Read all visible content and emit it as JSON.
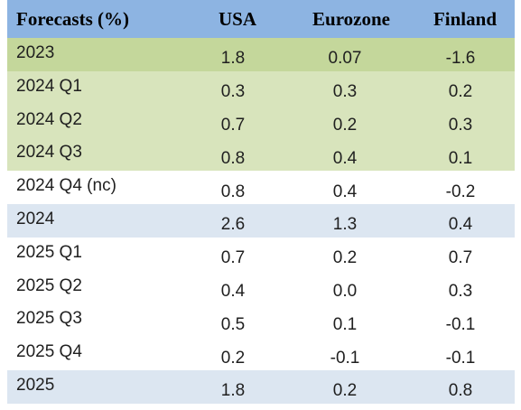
{
  "chart_data": {
    "type": "table",
    "header": {
      "label": "Forecasts (%)",
      "columns": [
        "USA",
        "Eurozone",
        "Finland"
      ]
    },
    "rows": [
      {
        "label": "2023",
        "values": [
          "1.8",
          "0.07",
          "-1.6"
        ],
        "style": "year-green"
      },
      {
        "label": "2024 Q1",
        "values": [
          "0.3",
          "0.3",
          "0.2"
        ],
        "style": "quarter-green"
      },
      {
        "label": "2024 Q2",
        "values": [
          "0.7",
          "0.2",
          "0.3"
        ],
        "style": "quarter-green"
      },
      {
        "label": "2024 Q3",
        "values": [
          "0.8",
          "0.4",
          "0.1"
        ],
        "style": "quarter-green"
      },
      {
        "label": "2024 Q4 (nc)",
        "values": [
          "0.8",
          "0.4",
          "-0.2"
        ],
        "style": "white"
      },
      {
        "label": "2024",
        "values": [
          "2.6",
          "1.3",
          "0.4"
        ],
        "style": "year-blue"
      },
      {
        "label": "2025 Q1",
        "values": [
          "0.7",
          "0.2",
          "0.7"
        ],
        "style": "white"
      },
      {
        "label": "2025 Q2",
        "values": [
          "0.4",
          "0.0",
          "0.3"
        ],
        "style": "white"
      },
      {
        "label": "2025 Q3",
        "values": [
          "0.5",
          "0.1",
          "-0.1"
        ],
        "style": "white"
      },
      {
        "label": "2025 Q4",
        "values": [
          "0.2",
          "-0.1",
          "-0.1"
        ],
        "style": "white"
      },
      {
        "label": "2025",
        "values": [
          "1.8",
          "0.2",
          "0.8"
        ],
        "style": "year-blue"
      }
    ]
  },
  "colors": {
    "header_bg": "#8db4e2",
    "year_green": "#c4d79b",
    "quarter_green": "#d8e4bc",
    "year_blue": "#dce6f1",
    "white": "#ffffff"
  }
}
